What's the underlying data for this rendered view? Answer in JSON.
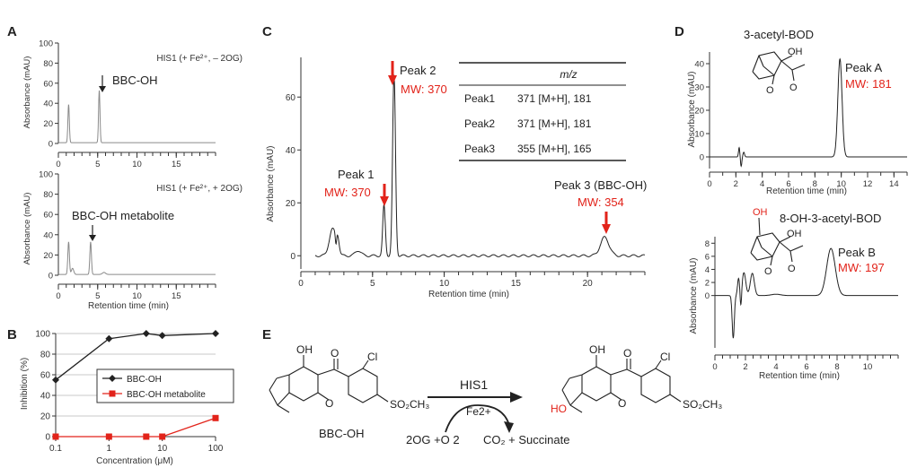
{
  "colors": {
    "axis": "#333333",
    "trace": "#222222",
    "grey_trace": "#8a8a8a",
    "red": "#e2231a",
    "black_series": "#222222"
  },
  "panels": {
    "A": "A",
    "B": "B",
    "C": "C",
    "D": "D",
    "E": "E"
  },
  "chart_data": [
    {
      "panel": "A-top",
      "type": "line",
      "annotation": "HIS1 (+ Fe²⁺, – 2OG)",
      "ylabel": "Absorbance (mAU)",
      "yticks": [
        "100",
        "80",
        "60",
        "40",
        "20",
        "0"
      ],
      "xticks": [
        "0",
        "5",
        "10",
        "15"
      ],
      "xlim": [
        0,
        20
      ],
      "ylim": [
        0,
        100
      ],
      "peak_label": "BBC-OH",
      "peaks": [
        {
          "x": 1.3,
          "y": 38
        },
        {
          "x": 5.2,
          "y": 52
        }
      ]
    },
    {
      "panel": "A-bottom",
      "type": "line",
      "annotation": "HIS1 (+ Fe²⁺, + 2OG)",
      "ylabel": "Absorbance (mAU)",
      "xlabel": "Retention time (min)",
      "yticks": [
        "100",
        "80",
        "60",
        "40",
        "20",
        "0"
      ],
      "xticks": [
        "0",
        "5",
        "10",
        "15"
      ],
      "xlim": [
        0,
        20
      ],
      "ylim": [
        0,
        100
      ],
      "peak_label": "BBC-OH metabolite",
      "peaks": [
        {
          "x": 1.3,
          "y": 32
        },
        {
          "x": 4.1,
          "y": 32
        }
      ]
    },
    {
      "panel": "B",
      "type": "line",
      "xlabel": "Concentration (μM)",
      "ylabel": "Inhibition (%)",
      "xscale": "log",
      "x": [
        0.1,
        1,
        5,
        10,
        100
      ],
      "xticks": [
        "0.1",
        "1",
        "10",
        "100"
      ],
      "yticks": [
        "100",
        "80",
        "60",
        "40",
        "20",
        "0"
      ],
      "ylim": [
        0,
        100
      ],
      "legend_position": "center-right",
      "series": [
        {
          "name": "BBC-OH",
          "values": [
            55,
            95,
            100,
            98,
            100
          ]
        },
        {
          "name": "BBC-OH metabolite",
          "values": [
            0,
            0,
            0,
            0,
            18
          ]
        }
      ]
    },
    {
      "panel": "C",
      "type": "line",
      "ylabel": "Absorbance (mAU)",
      "xlabel": "Retention time (min)",
      "yticks": [
        "60",
        "40",
        "20",
        "0"
      ],
      "xticks": [
        "0",
        "5",
        "10",
        "15",
        "20"
      ],
      "xlim": [
        0,
        24
      ],
      "ylim": [
        -5,
        75
      ],
      "peaks": [
        {
          "name": "Peak 1",
          "mw": "MW: 370",
          "x": 5.8,
          "y": 19
        },
        {
          "name": "Peak 2",
          "mw": "MW: 370",
          "x": 6.5,
          "y": 68
        },
        {
          "name": "Peak 3 (BBC-OH)",
          "mw": "MW: 354",
          "x": 21.2,
          "y": 7
        }
      ],
      "table": {
        "header": "m/z",
        "rows": [
          {
            "peak": "Peak1",
            "value": "371 [M+H], 181"
          },
          {
            "peak": "Peak2",
            "value": "371 [M+H], 181"
          },
          {
            "peak": "Peak3",
            "value": "355 [M+H], 165"
          }
        ]
      }
    },
    {
      "panel": "D-top",
      "type": "line",
      "compound": "3-acetyl-BOD",
      "ylabel": "Absorbance (mAU)",
      "xlabel": "Retention time (min)",
      "yticks": [
        "40",
        "30",
        "20",
        "10",
        "0"
      ],
      "xticks": [
        "0",
        "2",
        "4",
        "6",
        "8",
        "10",
        "12",
        "14"
      ],
      "xlim": [
        0,
        15
      ],
      "ylim": [
        -5,
        45
      ],
      "peak": {
        "name": "Peak A",
        "mw": "MW: 181",
        "x": 9.9,
        "y": 42
      }
    },
    {
      "panel": "D-bottom",
      "type": "line",
      "compound": "8-OH-3-acetyl-BOD",
      "substituent": "OH",
      "ylabel": "Absorbance (mAU)",
      "xlabel": "Retention time (min)",
      "yticks": [
        "8",
        "6",
        "4",
        "2",
        "0"
      ],
      "xticks": [
        "0",
        "2",
        "4",
        "6",
        "8",
        "10"
      ],
      "xlim": [
        0,
        12
      ],
      "ylim": [
        -8,
        9
      ],
      "peak": {
        "name": "Peak B",
        "mw": "MW: 197",
        "x": 7.6,
        "y": 7.2
      }
    }
  ],
  "structure_labels": {
    "oh": "OH",
    "o": "O"
  },
  "reaction": {
    "substrate": "BBC-OH",
    "enzyme": "HIS1",
    "cofactor": "Fe2+",
    "cosubstrate": "2OG +O 2",
    "products": "CO₂ + Succinate",
    "labels": {
      "oh": "OH",
      "cl": "Cl",
      "o": "O",
      "sulfonyl": "SO₂CH₃",
      "ho": "HO"
    }
  }
}
